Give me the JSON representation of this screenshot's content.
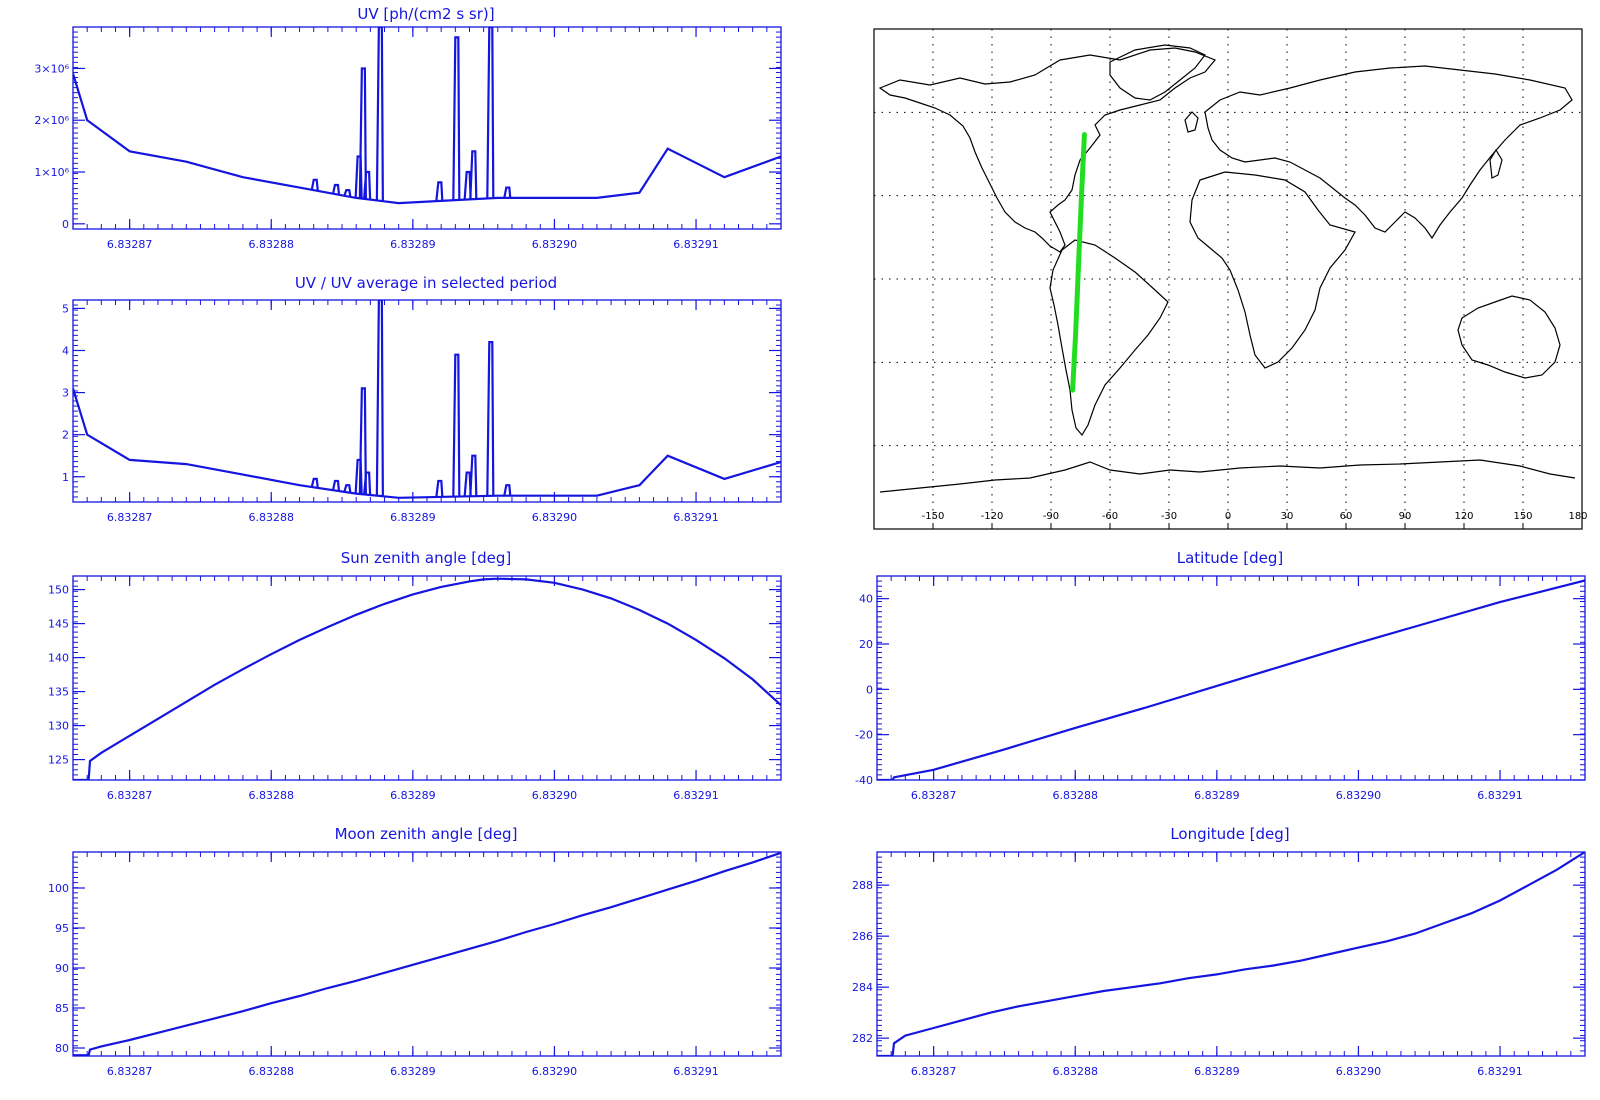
{
  "colors": {
    "plot": "#1515e0",
    "track": "#22dd22",
    "map": "#000000"
  },
  "chart_data": [
    {
      "id": "uv",
      "type": "line",
      "title": "UV [ph/(cm2 s sr)]",
      "x_ticks": [
        "6.83287",
        "6.83288",
        "6.83289",
        "6.83290",
        "6.83291"
      ],
      "x": [
        6.832866,
        6.832867,
        6.83287,
        6.832874,
        6.832878,
        6.832882,
        6.832886,
        6.832889,
        6.832896,
        6.832903,
        6.832906,
        6.832908,
        6.832912,
        6.832916
      ],
      "values": [
        2900000.0,
        2000000.0,
        1400000.0,
        1200000.0,
        900000.0,
        700000.0,
        500000.0,
        400000.0,
        500000.0,
        500000.0,
        600000.0,
        1450000.0,
        900000.0,
        1300000.0
      ],
      "ylim": [
        -100000,
        3800000
      ],
      "y_ticks": [
        0,
        1000000,
        2000000,
        3000000
      ],
      "y_tick_labels": [
        "0",
        "1×10⁶",
        "2×10⁶",
        "3×10⁶"
      ],
      "spikes": [
        {
          "x": 6.832883,
          "y": 850000.0
        },
        {
          "x": 6.8328845,
          "y": 750000.0
        },
        {
          "x": 6.8328853,
          "y": 650000.0
        },
        {
          "x": 6.8328861,
          "y": 1300000.0
        },
        {
          "x": 6.8328864,
          "y": 3000000.0
        },
        {
          "x": 6.8328867,
          "y": 1000000.0
        },
        {
          "x": 6.8328876,
          "y": 3800000.0
        },
        {
          "x": 6.8328918,
          "y": 800000.0
        },
        {
          "x": 6.832893,
          "y": 3600000.0
        },
        {
          "x": 6.8328938,
          "y": 1000000.0
        },
        {
          "x": 6.8328942,
          "y": 1400000.0
        },
        {
          "x": 6.8328954,
          "y": 3800000.0
        },
        {
          "x": 6.8328966,
          "y": 700000.0
        }
      ]
    },
    {
      "id": "uv-ratio",
      "type": "line",
      "title": "UV / UV average in selected period",
      "x_ticks": [
        "6.83287",
        "6.83288",
        "6.83289",
        "6.83290",
        "6.83291"
      ],
      "x": [
        6.832866,
        6.832867,
        6.83287,
        6.832874,
        6.832878,
        6.832882,
        6.832886,
        6.832889,
        6.832896,
        6.832903,
        6.832906,
        6.832908,
        6.832912,
        6.832916
      ],
      "values": [
        3.1,
        2.0,
        1.4,
        1.3,
        1.05,
        0.8,
        0.6,
        0.5,
        0.55,
        0.55,
        0.8,
        1.5,
        0.95,
        1.35
      ],
      "ylim": [
        0.4,
        5.2
      ],
      "y_ticks": [
        1,
        2,
        3,
        4,
        5
      ],
      "y_tick_labels": [
        "1",
        "2",
        "3",
        "4",
        "5"
      ],
      "spikes": [
        {
          "x": 6.832883,
          "y": 0.95
        },
        {
          "x": 6.8328845,
          "y": 0.9
        },
        {
          "x": 6.8328853,
          "y": 0.8
        },
        {
          "x": 6.8328861,
          "y": 1.4
        },
        {
          "x": 6.8328864,
          "y": 3.1
        },
        {
          "x": 6.8328867,
          "y": 1.1
        },
        {
          "x": 6.8328876,
          "y": 5.2
        },
        {
          "x": 6.8328918,
          "y": 0.9
        },
        {
          "x": 6.832893,
          "y": 3.9
        },
        {
          "x": 6.8328938,
          "y": 1.1
        },
        {
          "x": 6.8328942,
          "y": 1.5
        },
        {
          "x": 6.8328954,
          "y": 4.2
        },
        {
          "x": 6.8328966,
          "y": 0.8
        }
      ]
    },
    {
      "id": "sun-zenith",
      "type": "line",
      "title": "Sun zenith angle [deg]",
      "x_ticks": [
        "6.83287",
        "6.83288",
        "6.83289",
        "6.83290",
        "6.83291"
      ],
      "x": [
        6.832866,
        6.8328671,
        6.8328672,
        6.832868,
        6.83287,
        6.832872,
        6.832874,
        6.832876,
        6.832878,
        6.83288,
        6.832882,
        6.832884,
        6.832886,
        6.832888,
        6.83289,
        6.832892,
        6.832894,
        6.832895,
        6.832896,
        6.832898,
        6.8329,
        6.832902,
        6.832904,
        6.832906,
        6.832908,
        6.83291,
        6.832912,
        6.832914,
        6.832916
      ],
      "values": [
        122.0,
        122.0,
        124.8,
        126.0,
        128.5,
        131.0,
        133.5,
        136.0,
        138.3,
        140.5,
        142.6,
        144.5,
        146.3,
        147.9,
        149.3,
        150.4,
        151.2,
        151.5,
        151.6,
        151.5,
        151.0,
        150.0,
        148.7,
        147.0,
        145.0,
        142.6,
        139.9,
        136.8,
        133.0
      ],
      "ylim": [
        122,
        152
      ],
      "y_ticks": [
        125,
        130,
        135,
        140,
        145,
        150
      ],
      "y_tick_labels": [
        "125",
        "130",
        "135",
        "140",
        "145",
        "150"
      ]
    },
    {
      "id": "moon-zenith",
      "type": "line",
      "title": "Moon zenith angle [deg]",
      "x_ticks": [
        "6.83287",
        "6.83288",
        "6.83289",
        "6.83290",
        "6.83291"
      ],
      "x": [
        6.832866,
        6.8328671,
        6.8328672,
        6.832868,
        6.83287,
        6.832872,
        6.832874,
        6.832876,
        6.832878,
        6.83288,
        6.832882,
        6.832884,
        6.832886,
        6.832888,
        6.83289,
        6.832892,
        6.832894,
        6.832896,
        6.832898,
        6.8329,
        6.832902,
        6.832904,
        6.832906,
        6.832908,
        6.83291,
        6.832912,
        6.832914,
        6.832916
      ],
      "values": [
        79.1,
        79.1,
        79.8,
        80.2,
        81.0,
        81.9,
        82.8,
        83.7,
        84.6,
        85.6,
        86.5,
        87.5,
        88.4,
        89.4,
        90.4,
        91.4,
        92.4,
        93.4,
        94.5,
        95.5,
        96.6,
        97.6,
        98.7,
        99.8,
        100.9,
        102.1,
        103.2,
        104.4
      ],
      "ylim": [
        79,
        104.5
      ],
      "y_ticks": [
        80,
        85,
        90,
        95,
        100
      ],
      "y_tick_labels": [
        "80",
        "85",
        "90",
        "95",
        "100"
      ]
    },
    {
      "id": "latitude",
      "type": "line",
      "title": "Latitude [deg]",
      "x_ticks": [
        "6.83287",
        "6.83288",
        "6.83289",
        "6.83290",
        "6.83291"
      ],
      "x": [
        6.832866,
        6.8328671,
        6.8328672,
        6.83287,
        6.832875,
        6.83288,
        6.832885,
        6.83289,
        6.832895,
        6.8329,
        6.832905,
        6.83291,
        6.832916
      ],
      "values": [
        -40.0,
        -40.0,
        -38.8,
        -35.5,
        -26.5,
        -17.0,
        -8.0,
        1.5,
        11.0,
        20.5,
        29.5,
        38.5,
        48.0
      ],
      "ylim": [
        -40,
        50
      ],
      "y_ticks": [
        -40,
        -20,
        0,
        20,
        40
      ],
      "y_tick_labels": [
        "-40",
        "-20",
        "0",
        "20",
        "40"
      ]
    },
    {
      "id": "longitude",
      "type": "line",
      "title": "Longitude [deg]",
      "x_ticks": [
        "6.83287",
        "6.83288",
        "6.83289",
        "6.83290",
        "6.83291"
      ],
      "x": [
        6.832866,
        6.8328671,
        6.8328672,
        6.832868,
        6.83287,
        6.832872,
        6.832874,
        6.832876,
        6.832878,
        6.83288,
        6.832882,
        6.832884,
        6.832886,
        6.832888,
        6.83289,
        6.832892,
        6.832894,
        6.832896,
        6.832898,
        6.8329,
        6.832902,
        6.832904,
        6.832906,
        6.832908,
        6.83291,
        6.832912,
        6.832914,
        6.832916
      ],
      "values": [
        281.3,
        281.3,
        281.8,
        282.1,
        282.4,
        282.7,
        283.0,
        283.25,
        283.45,
        283.65,
        283.85,
        284.0,
        284.15,
        284.35,
        284.5,
        284.7,
        284.85,
        285.05,
        285.3,
        285.55,
        285.8,
        286.1,
        286.5,
        286.9,
        287.4,
        288.0,
        288.6,
        289.3
      ],
      "ylim": [
        281.3,
        289.3
      ],
      "y_ticks": [
        282,
        284,
        286,
        288
      ],
      "y_tick_labels": [
        "282",
        "284",
        "286",
        "288"
      ]
    }
  ],
  "map": {
    "x_tick_labels": [
      "-150",
      "-120",
      "-90",
      "-60",
      "-30",
      "0",
      "30",
      "60",
      "90",
      "120",
      "150",
      "180"
    ],
    "x_ticks": [
      -150,
      -120,
      -90,
      -60,
      -30,
      0,
      30,
      60,
      90,
      120,
      150,
      180
    ],
    "lon_range": [
      -180,
      180
    ],
    "lat_range": [
      -90,
      90
    ],
    "grid_lat": [
      -60,
      -30,
      0,
      30,
      60
    ],
    "track": [
      {
        "lon": -73.0,
        "lat": 52.0
      },
      {
        "lon": -74.5,
        "lat": 30.0
      },
      {
        "lon": -76.0,
        "lat": 5.0
      },
      {
        "lon": -77.5,
        "lat": -20.0
      },
      {
        "lon": -79.0,
        "lat": -40.0
      }
    ]
  }
}
